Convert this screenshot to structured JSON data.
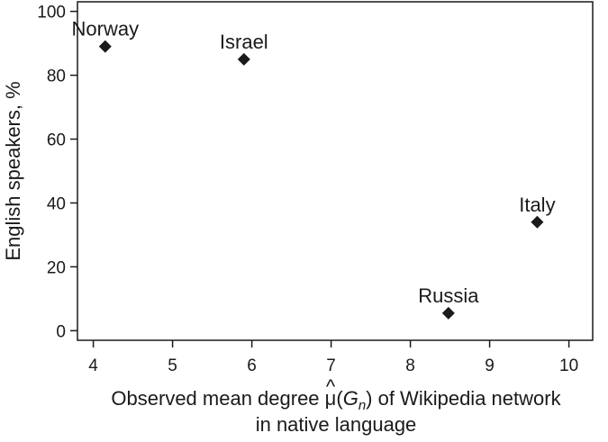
{
  "chart_data": {
    "type": "scatter",
    "title": "",
    "xlabel": {
      "prefix": "Observed mean degree ",
      "symbol": "μ",
      "hat": "^",
      "open_paren": "(",
      "var": "G",
      "subscript": "n",
      "close_paren": ")",
      "suffix": " of Wikipedia network",
      "line2": "in native language"
    },
    "ylabel": "English speakers, %",
    "xlim": [
      3.8,
      10.3
    ],
    "ylim": [
      -3,
      103
    ],
    "xticks": [
      4,
      5,
      6,
      7,
      8,
      9,
      10
    ],
    "yticks": [
      0,
      20,
      40,
      60,
      80,
      100
    ],
    "grid": false,
    "marker": "diamond",
    "marker_color": "#1a1a1a",
    "points": [
      {
        "label": "Norway",
        "x": 4.15,
        "y": 89
      },
      {
        "label": "Israel",
        "x": 5.9,
        "y": 85
      },
      {
        "label": "Italy",
        "x": 9.6,
        "y": 34
      },
      {
        "label": "Russia",
        "x": 8.48,
        "y": 5.5
      }
    ]
  }
}
